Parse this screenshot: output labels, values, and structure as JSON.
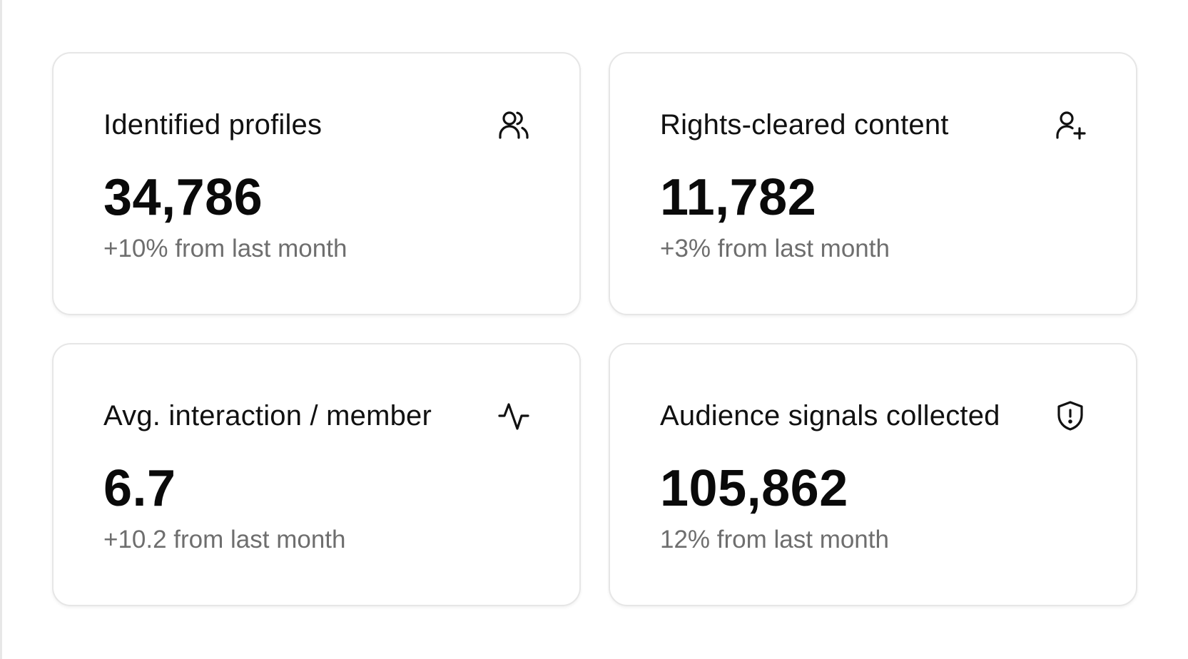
{
  "cards": [
    {
      "title": "Identified profiles",
      "value": "34,786",
      "delta": "+10% from last month",
      "icon": "users-icon"
    },
    {
      "title": "Rights-cleared content",
      "value": "11,782",
      "delta": "+3% from last month",
      "icon": "user-plus-icon"
    },
    {
      "title": "Avg. interaction / member",
      "value": "6.7",
      "delta": "+10.2 from last month",
      "icon": "activity-icon"
    },
    {
      "title": "Audience signals collected",
      "value": "105,862",
      "delta": "12% from last month",
      "icon": "shield-alert-icon"
    }
  ],
  "colors": {
    "text": "#0a0a0a",
    "muted": "#6e6e6e",
    "border": "#e6e6e6",
    "background": "#ffffff"
  }
}
